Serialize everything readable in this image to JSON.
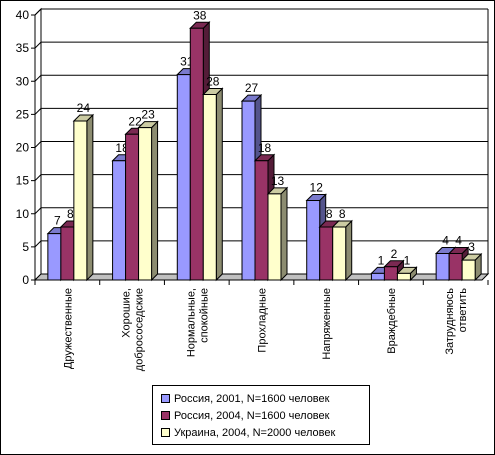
{
  "chart_data": {
    "type": "bar",
    "title": "",
    "xlabel": "",
    "ylabel": "",
    "ylim": [
      0,
      40
    ],
    "yticks": [
      0,
      5,
      10,
      15,
      20,
      25,
      30,
      35,
      40
    ],
    "grid": true,
    "legend_position": "bottom",
    "style": "3d-clustered",
    "categories": [
      [
        "Дружественные"
      ],
      [
        "Хорошие,",
        "добрососедские"
      ],
      [
        "Нормальные,",
        "спокойные"
      ],
      [
        "Прохладные"
      ],
      [
        "Напряженные"
      ],
      [
        "Враждебные"
      ],
      [
        "Затрудняюсь",
        "ответить"
      ]
    ],
    "series": [
      {
        "name": "Россия, 2001, N=1600 человек",
        "color": "#9999ff",
        "values": [
          7,
          18,
          31,
          27,
          12,
          1,
          4
        ]
      },
      {
        "name": "Россия, 2004,  N=1600 человек",
        "color": "#993366",
        "values": [
          8,
          22,
          38,
          18,
          8,
          2,
          4
        ]
      },
      {
        "name": "Украина, 2004,  N=2000 человек",
        "color": "#ffffcc",
        "values": [
          24,
          23,
          28,
          13,
          8,
          1,
          3
        ]
      }
    ]
  }
}
